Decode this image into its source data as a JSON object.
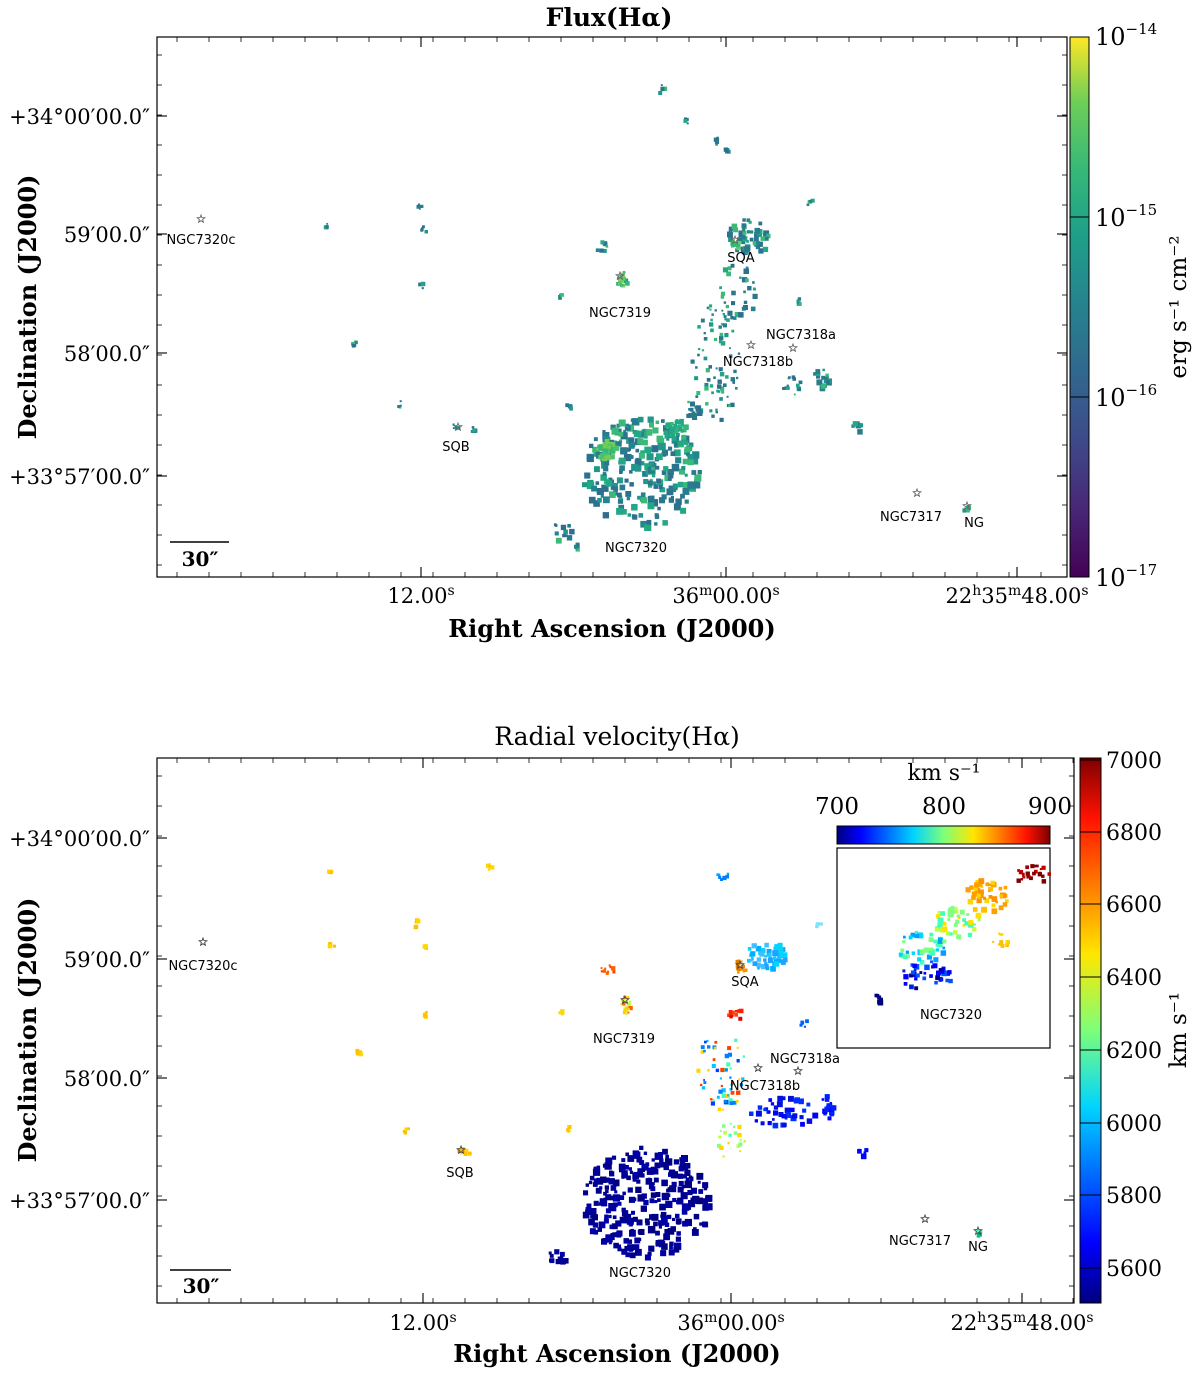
{
  "panels": [
    {
      "title": "Flux(Hα)",
      "title_bold": true,
      "xlabel": "Right Ascension (J2000)",
      "ylabel": "Declination (J2000)",
      "x_ticks": [
        {
          "main": "12.00",
          "sup": "s"
        },
        {
          "main": "36",
          "sup1": "m",
          "main2": "00.00",
          "sup": "s"
        },
        {
          "main": "22",
          "sup1": "h",
          "main2": "35",
          "sup2": "m",
          "main3": "48.00",
          "sup": "s"
        }
      ],
      "y_ticks": [
        "+34°00′00.0″",
        "59′00.0″",
        "58′00.0″",
        "+33°57′00.0″"
      ],
      "scalebar_label": "30″",
      "colorbar": {
        "type": "log",
        "label": "erg s⁻¹ cm⁻²",
        "tick_base": "10",
        "tick_exponents": [
          "−14",
          "−15",
          "−16",
          "−17"
        ],
        "colormap": "viridis"
      },
      "labels": [
        "NGC7320c",
        "SQA",
        "NGC7319",
        "NGC7318a",
        "NGC7318b",
        "SQB",
        "NGC7317",
        "NG",
        "NGC7320"
      ]
    },
    {
      "title": "Radial velocity(Hα)",
      "title_bold": false,
      "xlabel": "Right Ascension (J2000)",
      "ylabel": "Declination (J2000)",
      "x_ticks": [
        {
          "main": "12.00",
          "sup": "s"
        },
        {
          "main": "36",
          "sup1": "m",
          "main2": "00.00",
          "sup": "s"
        },
        {
          "main": "22",
          "sup1": "h",
          "main2": "35",
          "sup2": "m",
          "main3": "48.00",
          "sup": "s"
        }
      ],
      "y_ticks": [
        "+34°00′00.0″",
        "59′00.0″",
        "58′00.0″",
        "+33°57′00.0″"
      ],
      "scalebar_label": "30″",
      "colorbar": {
        "type": "linear",
        "label": "km s⁻¹",
        "ticks": [
          "7000",
          "6800",
          "6600",
          "6400",
          "6200",
          "6000",
          "5800",
          "5600"
        ],
        "colormap": "jet"
      },
      "inset": {
        "colorbar_label": "km s⁻¹",
        "colorbar_ticks": [
          "700",
          "800",
          "900"
        ],
        "label": "NGC7320"
      },
      "labels": [
        "NGC7320c",
        "SQA",
        "NGC7319",
        "NGC7318a",
        "NGC7318b",
        "SQB",
        "NGC7317",
        "NG",
        "NGC7320"
      ]
    }
  ],
  "chart_data": [
    {
      "type": "heatmap",
      "title": "Flux(Hα)",
      "xlabel": "Right Ascension (J2000)",
      "ylabel": "Declination (J2000)",
      "colorbar_label": "erg s⁻¹ cm⁻²",
      "colorbar_scale": "log",
      "colorbar_range": [
        1e-17,
        1e-14
      ],
      "colorbar_ticks": [
        1e-14,
        1e-15,
        1e-16,
        1e-17
      ],
      "x_tick_labels": [
        "12.00s",
        "36m00.00s",
        "22h35m48.00s"
      ],
      "y_tick_labels": [
        "+34°00′00.0″",
        "59′00.0″",
        "58′00.0″",
        "+33°57′00.0″"
      ],
      "objects": [
        "NGC7320c",
        "SQA",
        "NGC7319",
        "NGC7318a",
        "NGC7318b",
        "SQB",
        "NGC7317",
        "NG",
        "NGC7320"
      ]
    },
    {
      "type": "heatmap",
      "title": "Radial velocity(Hα)",
      "xlabel": "Right Ascension (J2000)",
      "ylabel": "Declination (J2000)",
      "colorbar_label": "km s⁻¹",
      "colorbar_scale": "linear",
      "colorbar_range": [
        5500,
        7000
      ],
      "colorbar_ticks": [
        7000,
        6800,
        6600,
        6400,
        6200,
        6000,
        5800,
        5600
      ],
      "inset_colorbar_range": [
        700,
        900
      ],
      "inset_colorbar_ticks": [
        700,
        800,
        900
      ],
      "x_tick_labels": [
        "12.00s",
        "36m00.00s",
        "22h35m48.00s"
      ],
      "y_tick_labels": [
        "+34°00′00.0″",
        "59′00.0″",
        "58′00.0″",
        "+33°57′00.0″"
      ],
      "objects": [
        "NGC7320c",
        "SQA",
        "NGC7319",
        "NGC7318a",
        "NGC7318b",
        "SQB",
        "NGC7317",
        "NG",
        "NGC7320"
      ]
    }
  ]
}
